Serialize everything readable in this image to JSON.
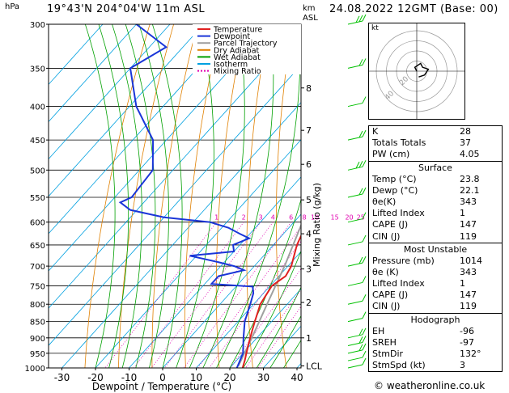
{
  "header": {
    "pressure_unit": "hPa",
    "location": "19°43'N  204°04'W  11m  ASL",
    "altitude_unit": "km",
    "altitude_sub": "ASL",
    "datetime": "24.08.2022  12GMT  (Base: 00)"
  },
  "chart_data": {
    "type": "skew-t log-p",
    "xlabel": "Dewpoint / Temperature (°C)",
    "ylabel_right": "Mixing Ratio (g/kg)",
    "pressure_ticks": [
      300,
      350,
      400,
      450,
      500,
      550,
      600,
      650,
      700,
      750,
      800,
      850,
      900,
      950,
      1000
    ],
    "temperature_ticks": [
      -30,
      -20,
      -10,
      0,
      10,
      20,
      30,
      40
    ],
    "altitude_ticks": [
      {
        "km": "1",
        "p": 900
      },
      {
        "km": "2",
        "p": 795
      },
      {
        "km": "3",
        "p": 707
      },
      {
        "km": "4",
        "p": 625
      },
      {
        "km": "5",
        "p": 555
      },
      {
        "km": "6",
        "p": 490
      },
      {
        "km": "7",
        "p": 435
      },
      {
        "km": "8",
        "p": 375
      },
      {
        "km": "LCL",
        "p": 993
      }
    ],
    "mixing_ratio_labels": [
      "1",
      "2",
      "3",
      "4",
      "6",
      "8",
      "10",
      "15",
      "20",
      "25"
    ],
    "legend": [
      "Temperature",
      "Dewpoint",
      "Parcel Trajectory",
      "Dry Adiabat",
      "Wet Adiabat",
      "Isotherm",
      "Mixing Ratio"
    ],
    "colors": {
      "temperature": "#e02020",
      "dewpoint": "#1a35d8",
      "parcel": "#a0a0a0",
      "dry_adiabat": "#e08000",
      "wet_adiabat": "#00a000",
      "isotherm": "#00a0e0",
      "mixing_ratio": "#e000b0",
      "wind": "#00c000"
    },
    "temperature_profile": [
      {
        "p": 1000,
        "t": 23.8
      },
      {
        "p": 975,
        "t": 22.5
      },
      {
        "p": 950,
        "t": 21
      },
      {
        "p": 925,
        "t": 19.5
      },
      {
        "p": 900,
        "t": 18
      },
      {
        "p": 875,
        "t": 16.5
      },
      {
        "p": 850,
        "t": 15
      },
      {
        "p": 800,
        "t": 12
      },
      {
        "p": 750,
        "t": 10.5
      },
      {
        "p": 725,
        "t": 12
      },
      {
        "p": 700,
        "t": 11
      },
      {
        "p": 650,
        "t": 7
      },
      {
        "p": 600,
        "t": 4
      },
      {
        "p": 550,
        "t": -0.5
      },
      {
        "p": 500,
        "t": -6
      },
      {
        "p": 450,
        "t": -12.5
      },
      {
        "p": 400,
        "t": -19
      },
      {
        "p": 350,
        "t": -28
      },
      {
        "p": 300,
        "t": -37
      }
    ],
    "dewpoint_profile": [
      {
        "p": 1000,
        "t": 22.1
      },
      {
        "p": 950,
        "t": 20
      },
      {
        "p": 900,
        "t": 16
      },
      {
        "p": 850,
        "t": 12
      },
      {
        "p": 800,
        "t": 9
      },
      {
        "p": 770,
        "t": 7
      },
      {
        "p": 752,
        "t": 5
      },
      {
        "p": 745,
        "t": -8
      },
      {
        "p": 725,
        "t": -8
      },
      {
        "p": 710,
        "t": -2
      },
      {
        "p": 700,
        "t": -6
      },
      {
        "p": 690,
        "t": -12
      },
      {
        "p": 675,
        "t": -22
      },
      {
        "p": 665,
        "t": -10
      },
      {
        "p": 650,
        "t": -12
      },
      {
        "p": 635,
        "t": -9
      },
      {
        "p": 625,
        "t": -13
      },
      {
        "p": 612,
        "t": -18
      },
      {
        "p": 600,
        "t": -25
      },
      {
        "p": 590,
        "t": -40
      },
      {
        "p": 575,
        "t": -52
      },
      {
        "p": 560,
        "t": -57
      },
      {
        "p": 550,
        "t": -55
      },
      {
        "p": 500,
        "t": -56
      },
      {
        "p": 450,
        "t": -64
      },
      {
        "p": 400,
        "t": -78
      },
      {
        "p": 350,
        "t": -90
      },
      {
        "p": 325,
        "t": -85
      },
      {
        "p": 300,
        "t": -100
      }
    ],
    "parcel_profile": [
      {
        "p": 993,
        "t": 22
      },
      {
        "p": 900,
        "t": 18.5
      },
      {
        "p": 800,
        "t": 14
      },
      {
        "p": 700,
        "t": 9
      },
      {
        "p": 600,
        "t": 2.5
      },
      {
        "p": 500,
        "t": -6.5
      },
      {
        "p": 400,
        "t": -19
      },
      {
        "p": 300,
        "t": -37
      }
    ],
    "wind_barbs": [
      {
        "p": 1000,
        "speed": 3
      },
      {
        "p": 975,
        "speed": 5
      },
      {
        "p": 950,
        "speed": 10
      },
      {
        "p": 925,
        "speed": 10
      },
      {
        "p": 900,
        "speed": 10
      },
      {
        "p": 850,
        "speed": 5
      },
      {
        "p": 800,
        "speed": 5
      },
      {
        "p": 750,
        "speed": 5
      },
      {
        "p": 700,
        "speed": 10
      },
      {
        "p": 650,
        "speed": 5
      },
      {
        "p": 600,
        "speed": 5
      },
      {
        "p": 550,
        "speed": 10
      },
      {
        "p": 500,
        "speed": 15
      },
      {
        "p": 450,
        "speed": 10
      },
      {
        "p": 400,
        "speed": 5
      },
      {
        "p": 350,
        "speed": 10
      },
      {
        "p": 300,
        "speed": 15
      }
    ]
  },
  "hodograph": {
    "label": "kt",
    "ring_labels": [
      "20",
      "40"
    ],
    "trace": [
      [
        0,
        0
      ],
      [
        -1,
        2
      ],
      [
        2,
        4
      ],
      [
        3,
        2
      ],
      [
        6,
        1
      ],
      [
        4,
        -2
      ],
      [
        1,
        -3
      ]
    ]
  },
  "indices": [
    {
      "label": "K",
      "value": "28"
    },
    {
      "label": "Totals Totals",
      "value": "37"
    },
    {
      "label": "PW (cm)",
      "value": "4.05"
    }
  ],
  "surface": {
    "title": "Surface",
    "rows": [
      {
        "label": "Temp (°C)",
        "value": "23.8"
      },
      {
        "label": "Dewp (°C)",
        "value": "22.1"
      },
      {
        "label": "θe(K)",
        "value": "343"
      },
      {
        "label": "Lifted Index",
        "value": "1"
      },
      {
        "label": "CAPE (J)",
        "value": "147"
      },
      {
        "label": "CIN (J)",
        "value": "119"
      }
    ]
  },
  "unstable": {
    "title": "Most Unstable",
    "rows": [
      {
        "label": "Pressure (mb)",
        "value": "1014"
      },
      {
        "label": "θe (K)",
        "value": "343"
      },
      {
        "label": "Lifted Index",
        "value": "1"
      },
      {
        "label": "CAPE (J)",
        "value": "147"
      },
      {
        "label": "CIN (J)",
        "value": "119"
      }
    ]
  },
  "hodo_stats": {
    "title": "Hodograph",
    "rows": [
      {
        "label": "EH",
        "value": "-96"
      },
      {
        "label": "SREH",
        "value": "-97"
      },
      {
        "label": "StmDir",
        "value": "132°"
      },
      {
        "label": "StmSpd (kt)",
        "value": "3"
      }
    ]
  },
  "copyright": "© weatheronline.co.uk"
}
